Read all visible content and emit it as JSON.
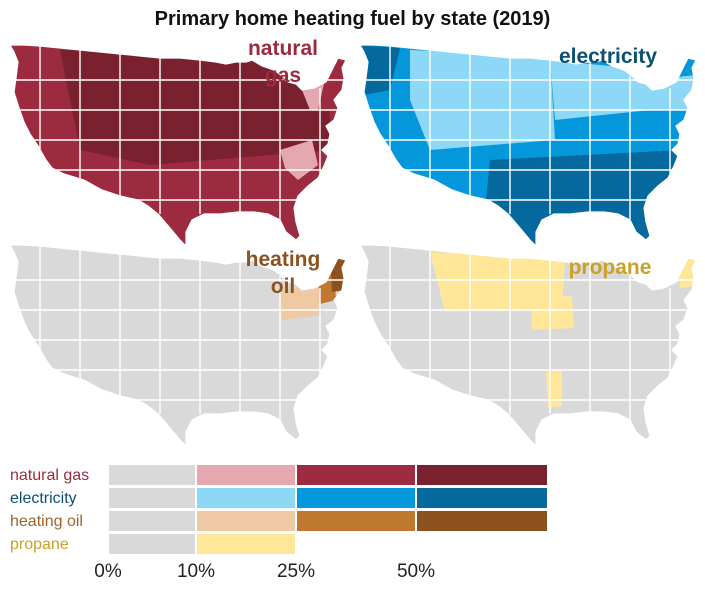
{
  "title": "Primary home heating fuel by state (2019)",
  "panels": [
    {
      "label_lines": [
        "natural",
        "gas"
      ],
      "color": "#9d2b3f"
    },
    {
      "label_lines": [
        "electricity"
      ],
      "color": "#0b4e72"
    },
    {
      "label_lines": [
        "heating",
        "oil"
      ],
      "color": "#8b5220"
    },
    {
      "label_lines": [
        "propane"
      ],
      "color": "#c9a227"
    }
  ],
  "legend": {
    "rows": [
      {
        "name": "natural gas",
        "label_color": "#9d2b3f",
        "colors": [
          "#d9d9d9",
          "#e5a8b0",
          "#9d2b3f",
          "#7a2130"
        ]
      },
      {
        "name": "electricity",
        "label_color": "#0b4e72",
        "colors": [
          "#d9d9d9",
          "#8dd7f7",
          "#0597dc",
          "#06699e"
        ]
      },
      {
        "name": "heating oil",
        "label_color": "#a0612a",
        "colors": [
          "#d9d9d9",
          "#efc9a4",
          "#c0772f",
          "#8b5220"
        ]
      },
      {
        "name": "propane",
        "label_color": "#c9a227",
        "colors": [
          "#d9d9d9",
          "#ffe699"
        ]
      }
    ],
    "ticks": [
      "0%",
      "10%",
      "25%",
      "50%"
    ],
    "breaks": [
      0,
      10,
      25,
      50
    ]
  },
  "base_color": "#d9d9d9"
}
